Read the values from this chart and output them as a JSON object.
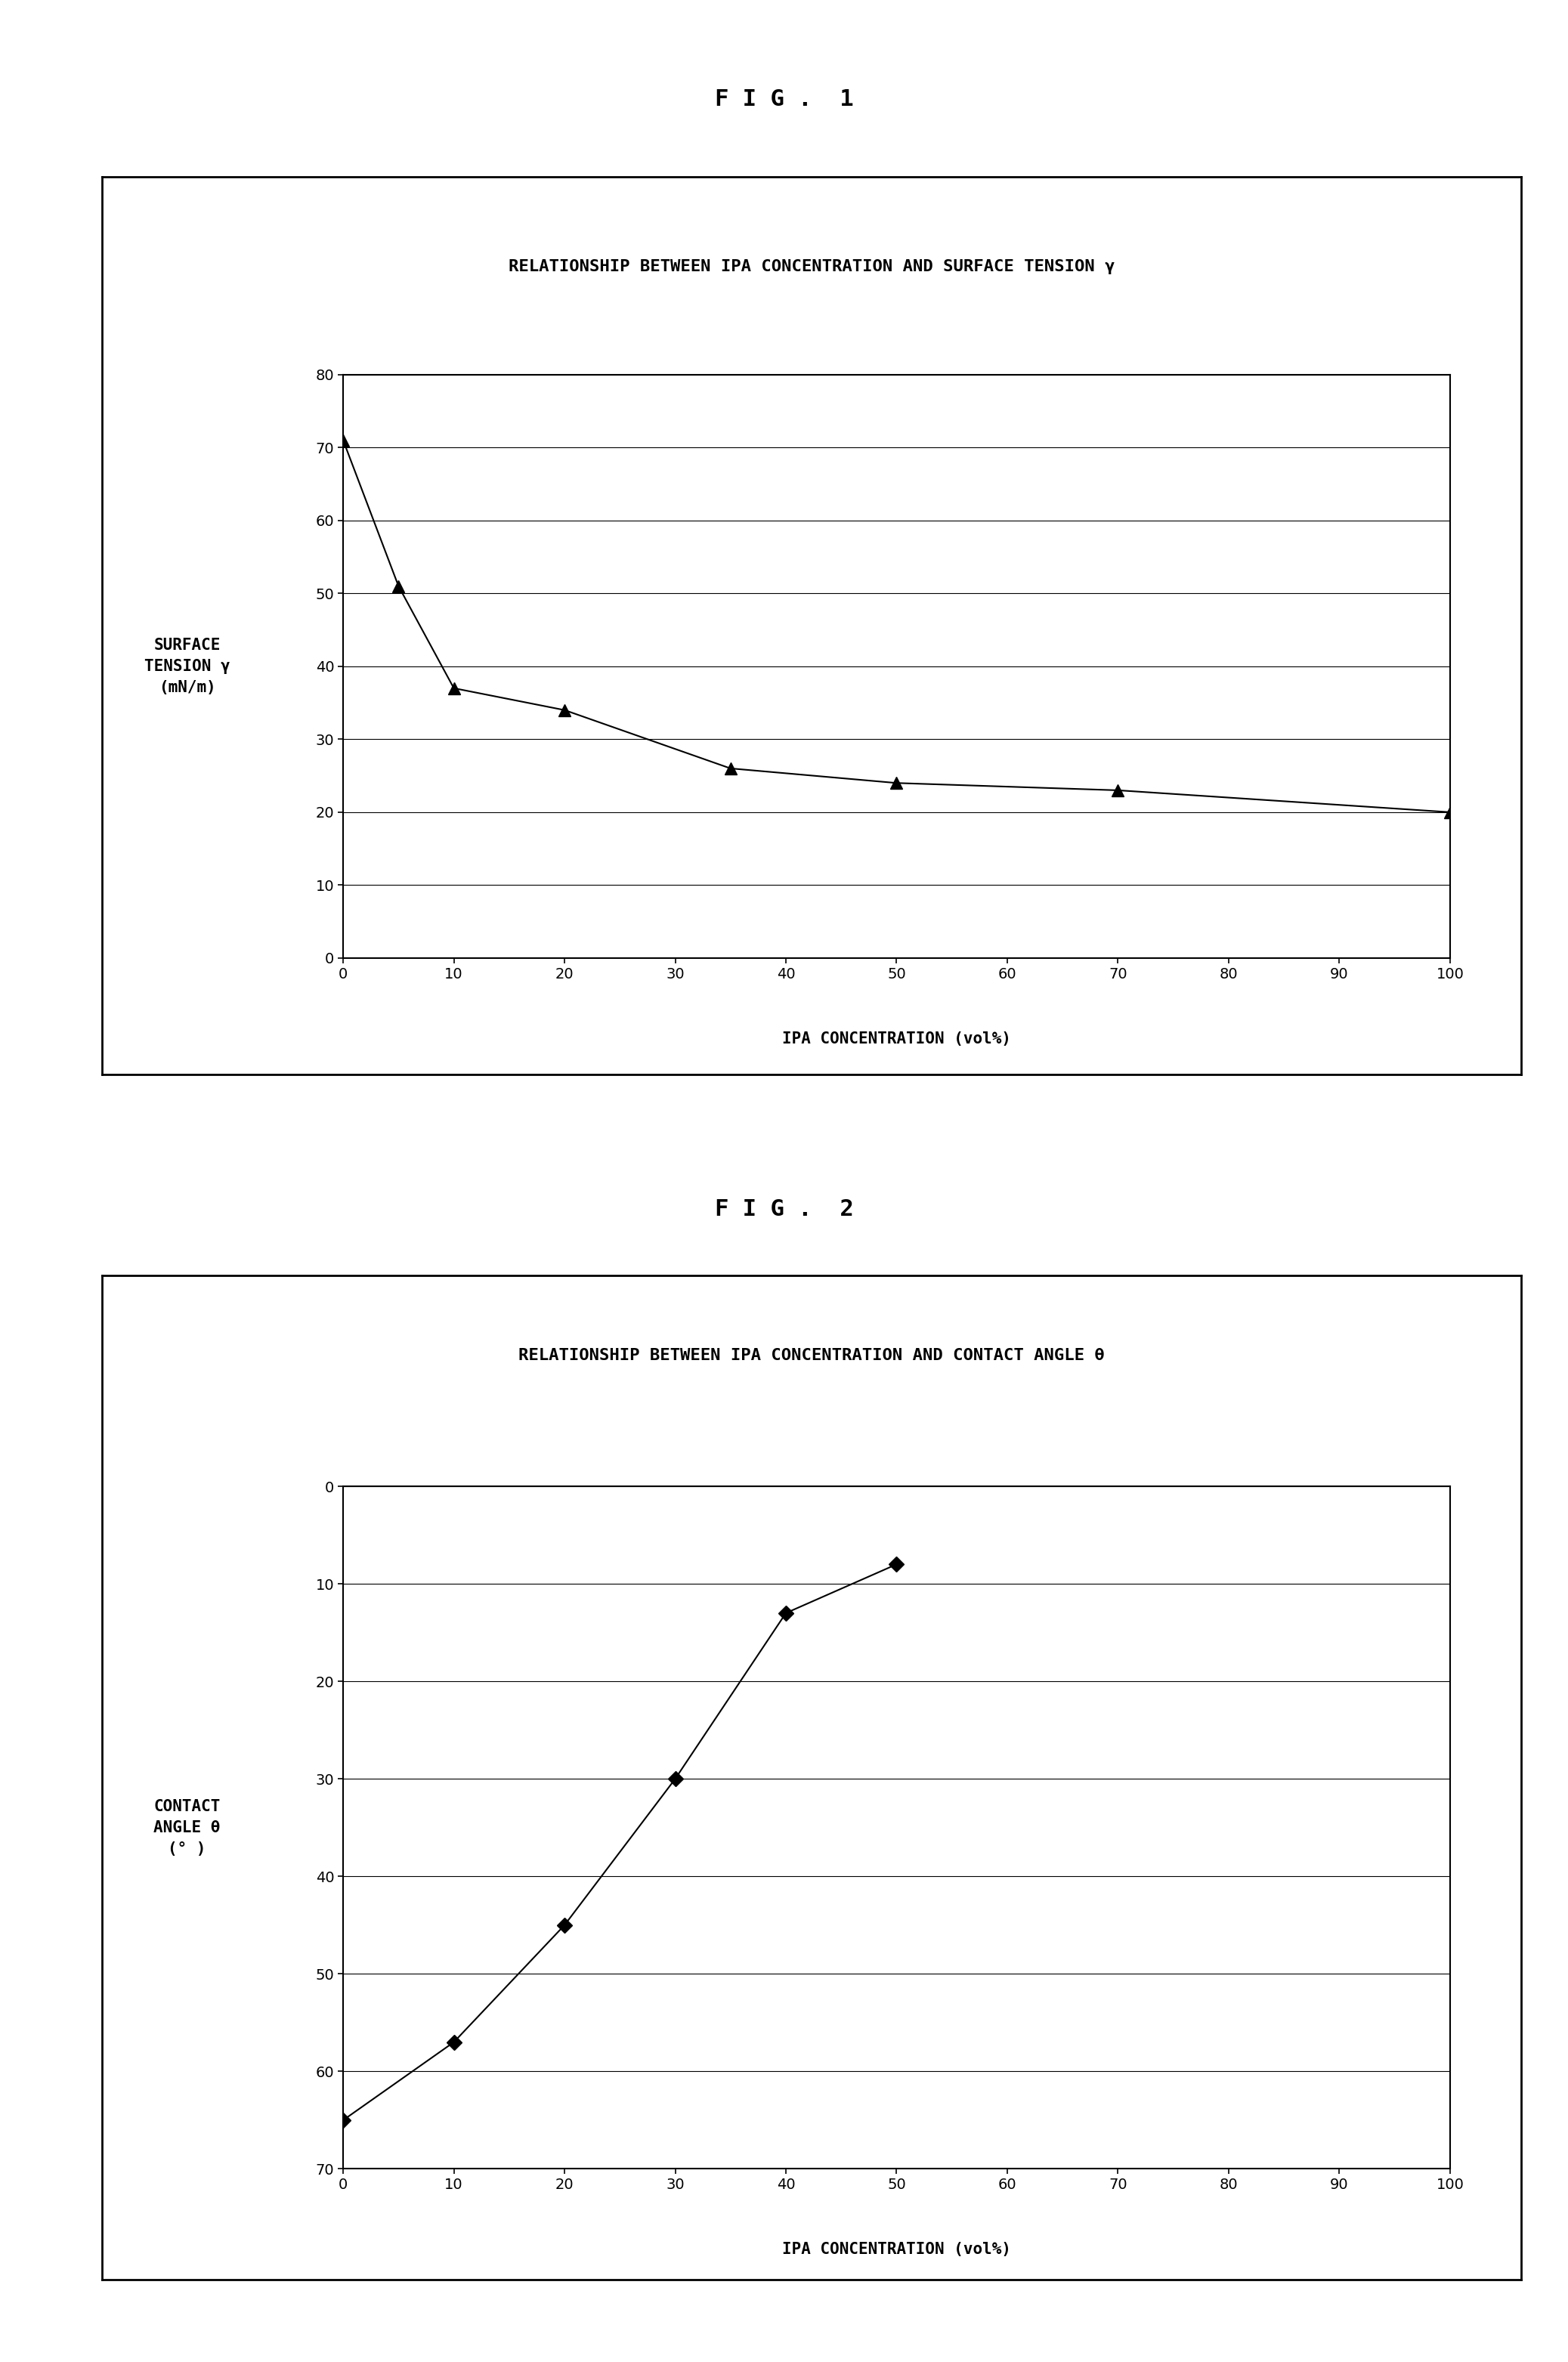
{
  "fig1": {
    "title": "RELATIONSHIP BETWEEN IPA CONCENTRATION AND SURFACE TENSION γ",
    "xlabel": "IPA CONCENTRATION (vol%)",
    "ylabel_line1": "SURFACE",
    "ylabel_line2": "TENSION γ",
    "ylabel_line3": "(mN/m)",
    "x": [
      0,
      5,
      10,
      20,
      35,
      50,
      70,
      100
    ],
    "y": [
      71,
      51,
      37,
      34,
      26,
      24,
      23,
      20
    ],
    "xlim": [
      0,
      100
    ],
    "ylim": [
      0,
      80
    ],
    "xticks": [
      0,
      10,
      20,
      30,
      40,
      50,
      60,
      70,
      80,
      90,
      100
    ],
    "yticks": [
      0,
      10,
      20,
      30,
      40,
      50,
      60,
      70,
      80
    ],
    "marker": "^",
    "markersize": 12,
    "linewidth": 1.5,
    "linecolor": "#000000",
    "markercolor": "#000000"
  },
  "fig2": {
    "title": "RELATIONSHIP BETWEEN IPA CONCENTRATION AND CONTACT ANGLE θ",
    "xlabel": "IPA CONCENTRATION (vol%)",
    "ylabel_line1": "CONTACT",
    "ylabel_line2": "ANGLE θ",
    "ylabel_line3": "(° )",
    "x": [
      0,
      10,
      20,
      30,
      40,
      50
    ],
    "y": [
      65,
      57,
      45,
      30,
      13,
      8
    ],
    "xlim": [
      0,
      100
    ],
    "ylim": [
      70,
      0
    ],
    "xticks": [
      0,
      10,
      20,
      30,
      40,
      50,
      60,
      70,
      80,
      90,
      100
    ],
    "yticks": [
      0,
      10,
      20,
      30,
      40,
      50,
      60,
      70
    ],
    "marker": "D",
    "markersize": 10,
    "linewidth": 1.5,
    "linecolor": "#000000",
    "markercolor": "#000000"
  },
  "fig_label1": "F I G .  1",
  "fig_label2": "F I G .  2",
  "background": "#ffffff",
  "title_fontsize": 16,
  "label_fontsize": 15,
  "tick_fontsize": 14,
  "fig_label_fontsize": 22
}
